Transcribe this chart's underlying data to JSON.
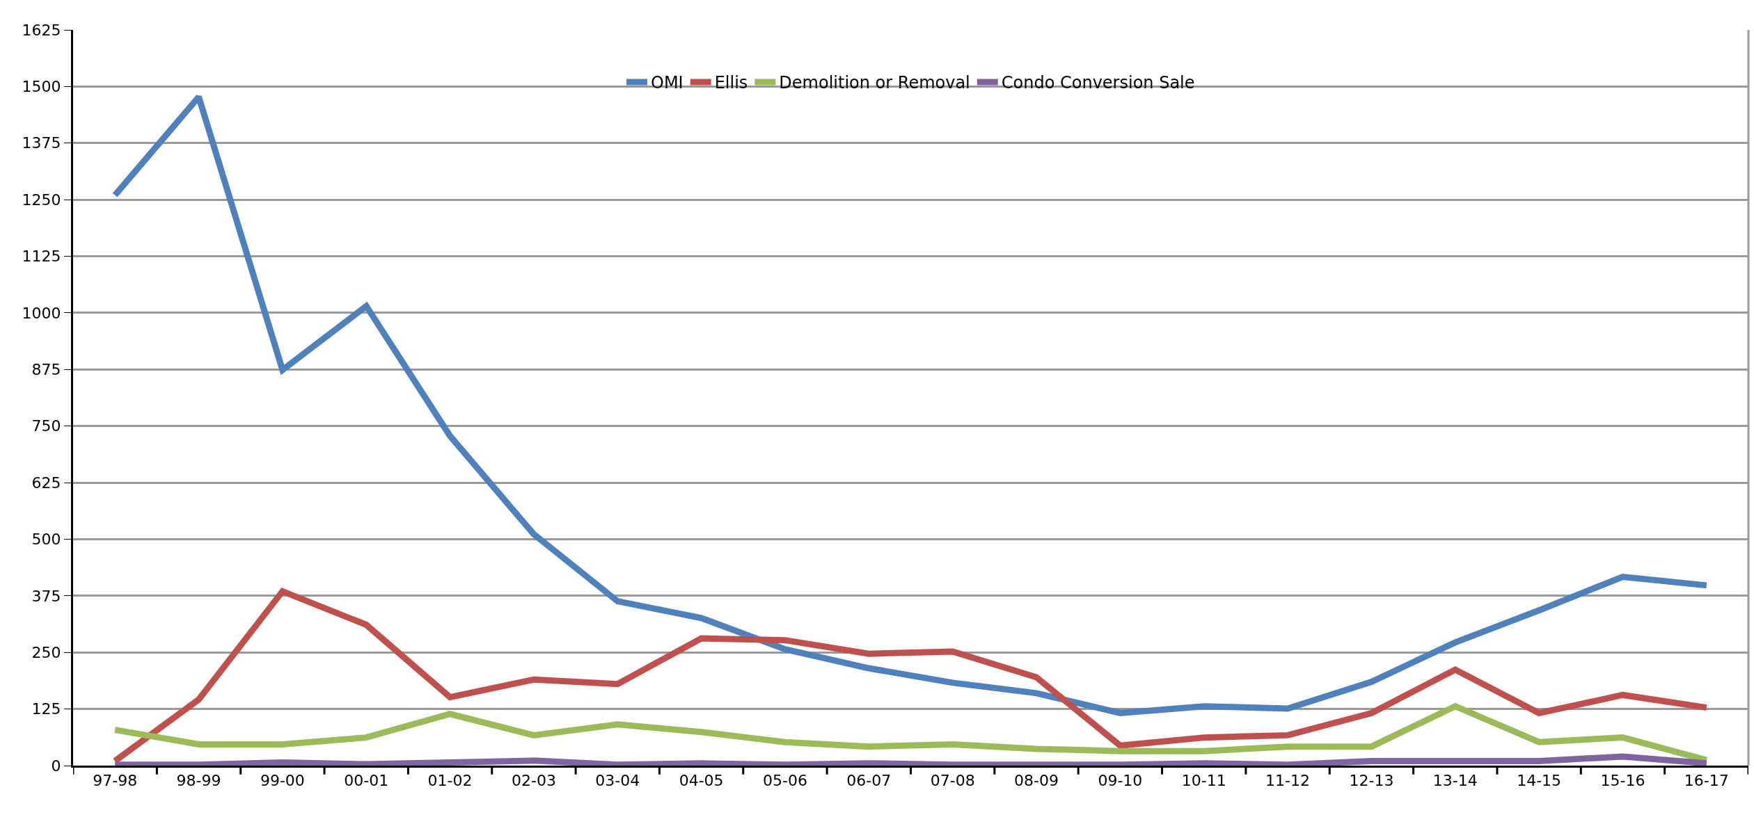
{
  "chart_data": {
    "type": "line",
    "categories": [
      "97-98",
      "98-99",
      "99-00",
      "00-01",
      "01-02",
      "02-03",
      "03-04",
      "04-05",
      "05-06",
      "06-07",
      "07-08",
      "08-09",
      "09-10",
      "10-11",
      "11-12",
      "12-13",
      "13-14",
      "14-15",
      "15-16",
      "16-17"
    ],
    "series": [
      {
        "name": "OMI",
        "color": "#4f81bd",
        "values": [
          1260,
          1477,
          874,
          1015,
          728,
          511,
          363,
          326,
          257,
          215,
          183,
          160,
          116,
          131,
          126,
          185,
          272,
          343,
          417,
          398
        ]
      },
      {
        "name": "Ellis",
        "color": "#c0504d",
        "values": [
          10,
          146,
          385,
          311,
          151,
          190,
          180,
          281,
          277,
          247,
          252,
          195,
          44,
          62,
          67,
          116,
          212,
          116,
          156,
          128
        ]
      },
      {
        "name": "Demolition or Removal",
        "color": "#9bbb59",
        "values": [
          79,
          47,
          47,
          62,
          114,
          67,
          91,
          74,
          52,
          42,
          47,
          37,
          32,
          32,
          42,
          42,
          131,
          52,
          62,
          12
        ]
      },
      {
        "name": "Condo Conversion Sale",
        "color": "#8064a2",
        "values": [
          2,
          2,
          7,
          3,
          7,
          11,
          2,
          5,
          2,
          5,
          2,
          2,
          2,
          5,
          2,
          10,
          10,
          10,
          20,
          5
        ]
      }
    ],
    "ylim": [
      0,
      1625
    ],
    "yticks": [
      0,
      125,
      250,
      375,
      500,
      625,
      750,
      875,
      1000,
      1125,
      1250,
      1375,
      1500,
      1625
    ],
    "grid": "y",
    "legend": "top",
    "marker": "none",
    "line_style": "solid"
  }
}
